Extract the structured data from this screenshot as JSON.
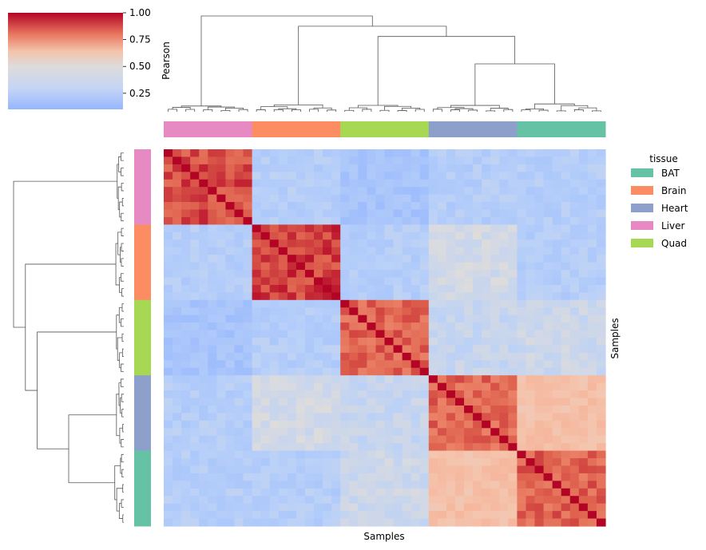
{
  "chart_data": {
    "type": "heatmap",
    "subtype": "clustermap",
    "title": "",
    "xlabel": "Samples",
    "ylabel": "Samples",
    "colorbar": {
      "label": "Pearson",
      "ticks": [
        "1.00",
        "0.75",
        "0.50",
        "0.25"
      ],
      "tick_values": [
        1.0,
        0.75,
        0.5,
        0.25
      ],
      "range": [
        0.1,
        1.0
      ],
      "colormap": "coolwarm"
    },
    "legend": {
      "title": "tissue",
      "placement": "right",
      "entries": [
        {
          "name": "BAT",
          "color": "#66c2a5"
        },
        {
          "name": "Brain",
          "color": "#fc8d62"
        },
        {
          "name": "Heart",
          "color": "#8da0cb"
        },
        {
          "name": "Liver",
          "color": "#e78ac3"
        },
        {
          "name": "Quad",
          "color": "#a6d854"
        }
      ]
    },
    "group_order": [
      "Liver",
      "Brain",
      "Quad",
      "Heart",
      "BAT"
    ],
    "samples_per_group": 10,
    "block_correlation": [
      [
        0.9,
        0.3,
        0.24,
        0.3,
        0.3
      ],
      [
        0.3,
        0.92,
        0.3,
        0.4,
        0.3
      ],
      [
        0.24,
        0.3,
        0.86,
        0.36,
        0.38
      ],
      [
        0.3,
        0.4,
        0.36,
        0.86,
        0.58
      ],
      [
        0.3,
        0.3,
        0.38,
        0.58,
        0.86
      ]
    ],
    "grid": false
  }
}
